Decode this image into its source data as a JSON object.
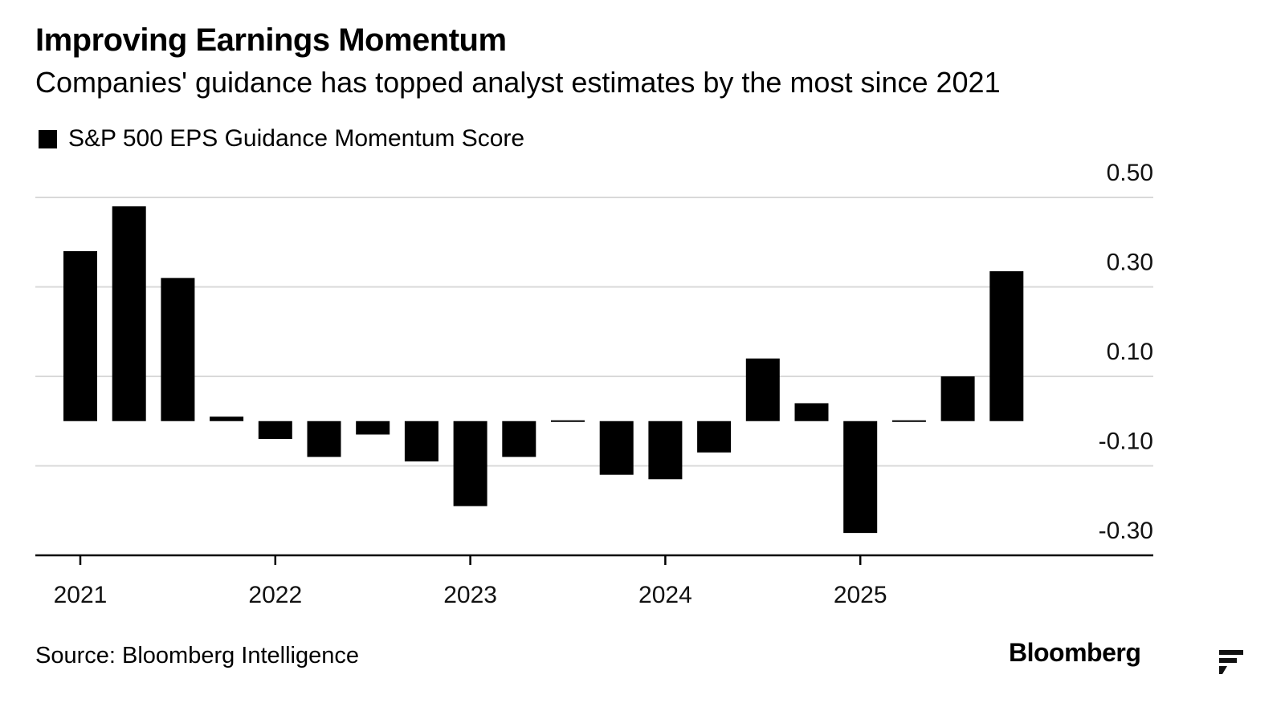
{
  "title": "Improving Earnings Momentum",
  "subtitle": "Companies' guidance has topped analyst estimates by the most since 2021",
  "legend": [
    {
      "label": "S&P 500 EPS Guidance Momentum Score",
      "color": "#000000"
    }
  ],
  "source": "Source: Bloomberg Intelligence",
  "brand": "Bloomberg",
  "corner_icon": "corner-logo-icon",
  "chart_data": {
    "type": "bar",
    "title": "Improving Earnings Momentum",
    "subtitle": "Companies' guidance has topped analyst estimates by the most since 2021",
    "xlabel": "",
    "ylabel": "",
    "ylim": [
      -0.3,
      0.5
    ],
    "grid": true,
    "y_axis_position": "right",
    "yticks": [
      0.5,
      0.3,
      0.1,
      -0.1,
      -0.3
    ],
    "ytick_labels": [
      "0.50",
      "0.30",
      "0.10",
      "-0.10",
      "-0.30"
    ],
    "xticks": [
      "2021",
      "2022",
      "2023",
      "2024",
      "2025"
    ],
    "x_tick_positions": [
      0,
      4,
      8,
      12,
      16
    ],
    "categories": [
      "2021 Q1",
      "2021 Q2",
      "2021 Q3",
      "2021 Q4",
      "2022 Q1",
      "2022 Q2",
      "2022 Q3",
      "2022 Q4",
      "2023 Q1",
      "2023 Q2",
      "2023 Q3",
      "2023 Q4",
      "2024 Q1",
      "2024 Q2",
      "2024 Q3",
      "2024 Q4",
      "2025 Q1",
      "2025 Q2",
      "2025 Q3",
      "2025 Q4"
    ],
    "series": [
      {
        "name": "S&P 500 EPS Guidance Momentum Score",
        "color": "#000000",
        "values": [
          0.38,
          0.48,
          0.32,
          0.01,
          -0.04,
          -0.08,
          -0.03,
          -0.09,
          -0.19,
          -0.08,
          0.003,
          -0.12,
          -0.13,
          -0.07,
          0.14,
          0.04,
          -0.25,
          -0.002,
          0.1,
          0.335
        ]
      }
    ]
  }
}
